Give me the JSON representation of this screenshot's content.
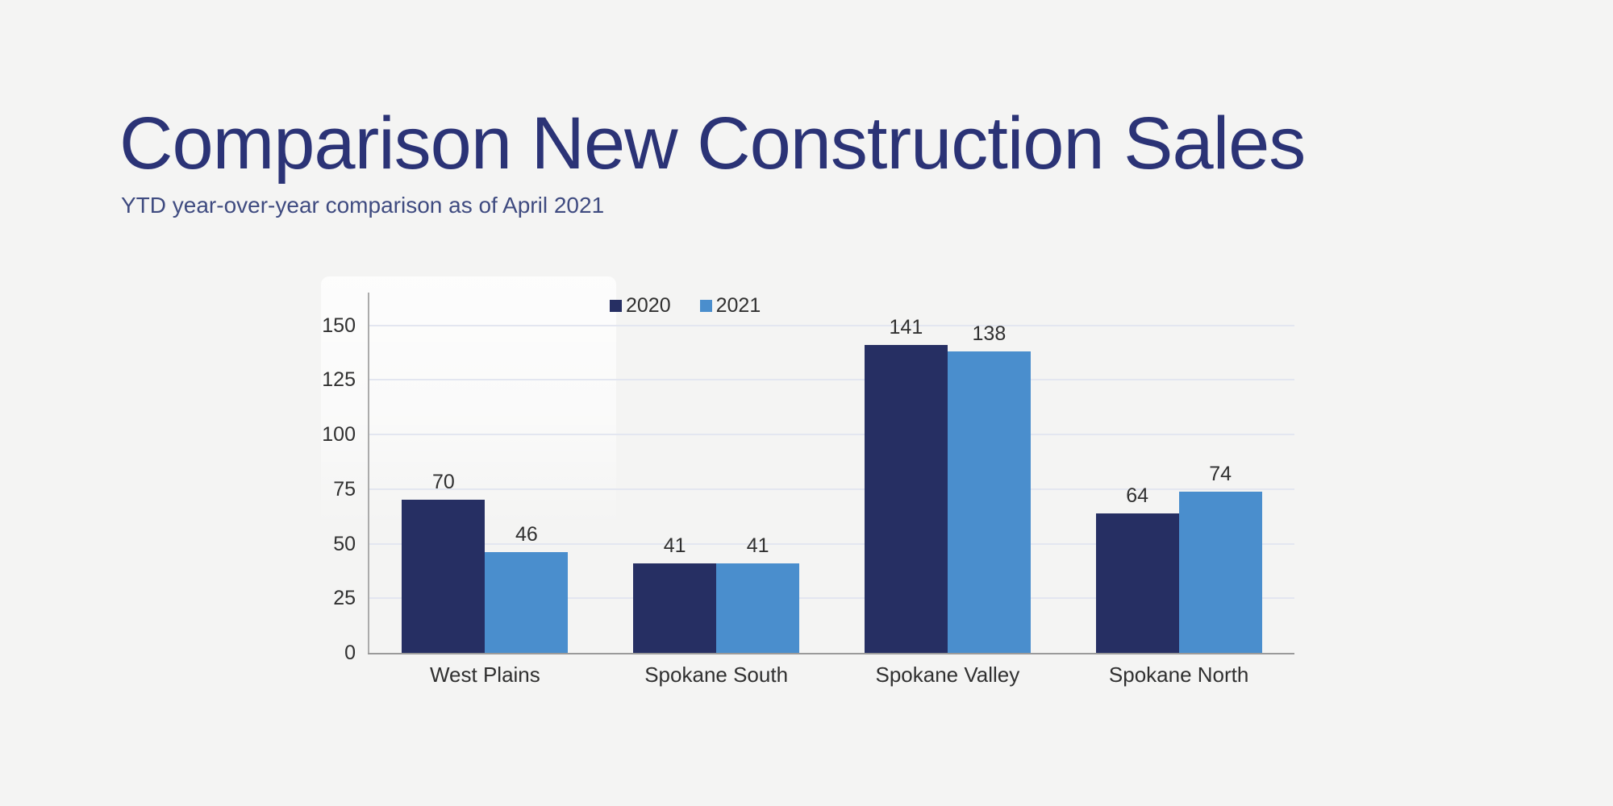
{
  "page": {
    "title": "Comparison New Construction Sales",
    "subtitle": "YTD year-over-year comparison as of April 2021"
  },
  "colors": {
    "background": "#f4f4f3",
    "title": "#2b3376",
    "subtitle": "#3f4b80",
    "gridline": "#e3e6f0",
    "y_axis_line": "#ababab",
    "x_axis_line": "#9a9a9a",
    "label_text": "#303030",
    "series_2020": "#262f63",
    "series_2021": "#4a8ecd"
  },
  "chart_data": {
    "type": "bar",
    "title": "Comparison New Construction Sales",
    "subtitle": "YTD year-over-year comparison as of April 2021",
    "categories": [
      "West Plains",
      "Spokane South",
      "Spokane Valley",
      "Spokane North"
    ],
    "series": [
      {
        "name": "2020",
        "color": "#262f63",
        "values": [
          70,
          41,
          141,
          64
        ]
      },
      {
        "name": "2021",
        "color": "#4a8ecd",
        "values": [
          46,
          41,
          138,
          74
        ]
      }
    ],
    "y_ticks": [
      0,
      25,
      50,
      75,
      100,
      125,
      150
    ],
    "ylim": [
      0,
      165
    ],
    "xlabel": "",
    "ylabel": "",
    "grid": true,
    "legend_position": "top",
    "data_labels": true
  }
}
